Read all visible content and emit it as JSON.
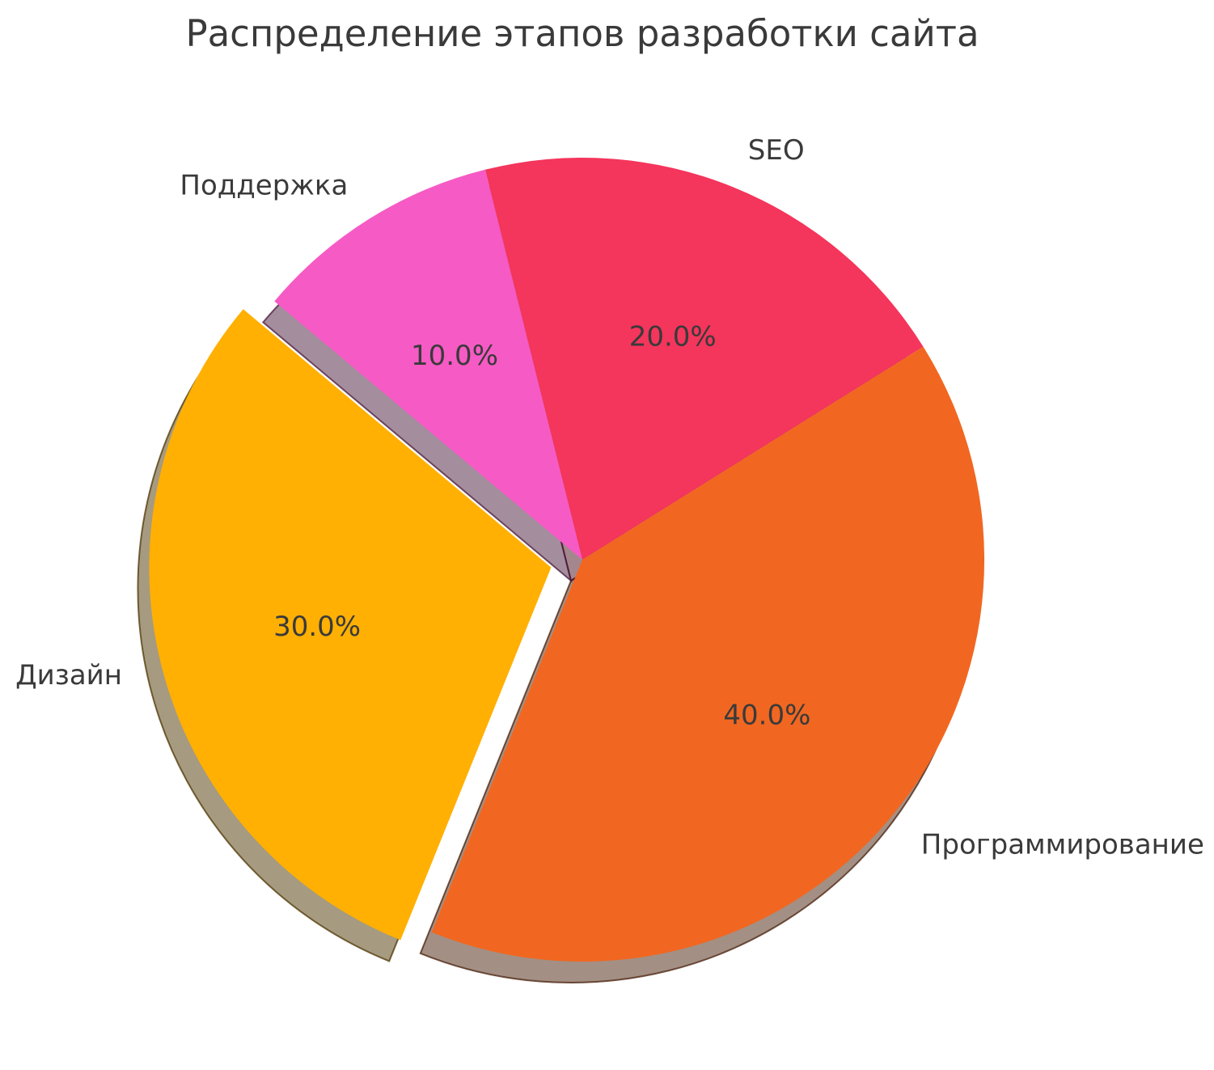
{
  "page": {
    "background": "#ffffff",
    "text_color": "#3a3a3a"
  },
  "chart_data": {
    "type": "pie",
    "title": "Распределение этапов разработки сайта",
    "categories": [
      "Дизайн",
      "Программирование",
      "SEO",
      "Поддержка"
    ],
    "values": [
      30,
      40,
      20,
      10
    ],
    "slices": [
      {
        "label": "Дизайн",
        "value": 30,
        "percent_label": "30.0%",
        "color": "#FFB003",
        "explode": 0.08
      },
      {
        "label": "Программирование",
        "value": 40,
        "percent_label": "40.0%",
        "color": "#F16721",
        "explode": 0
      },
      {
        "label": "SEO",
        "value": 20,
        "percent_label": "20.0%",
        "color": "#F4355C",
        "explode": 0
      },
      {
        "label": "Поддержка",
        "value": 10,
        "percent_label": "10.0%",
        "color": "#F65AC5",
        "explode": 0
      }
    ],
    "startangle": 140,
    "counterclock": true,
    "shadow": true,
    "labeldistance": 1.1,
    "pctdistance": 0.6,
    "legend_position": "none"
  }
}
